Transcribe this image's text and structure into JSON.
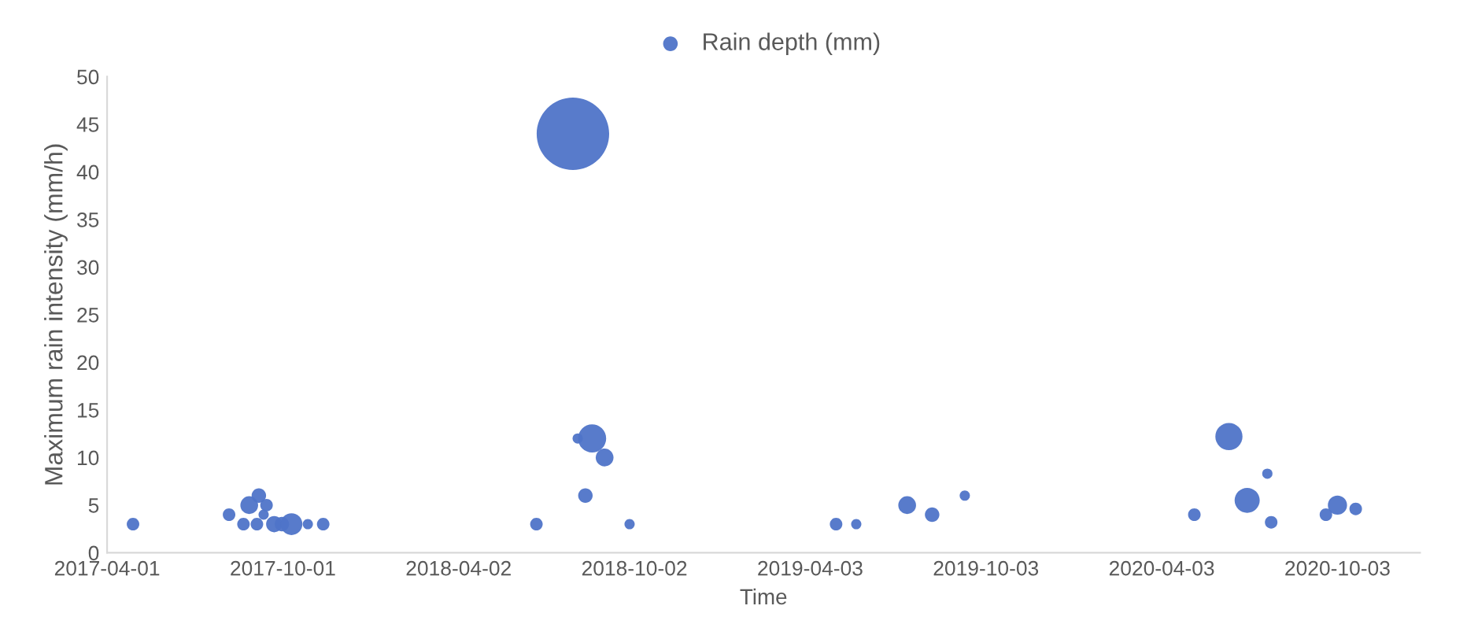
{
  "chart_data": {
    "type": "bubble",
    "xlabel": "Time",
    "ylabel": "Maximum rain intensity (mm/h)",
    "xlim": [
      "2017-04-01",
      "2020-12-28"
    ],
    "xticks": [
      "2017-04-01",
      "2017-10-01",
      "2018-04-02",
      "2018-10-02",
      "2019-04-03",
      "2019-10-03",
      "2020-04-03",
      "2020-10-03"
    ],
    "ylim": [
      0,
      50
    ],
    "yticks": [
      0,
      5,
      10,
      15,
      20,
      25,
      30,
      35,
      40,
      45,
      50
    ],
    "grid": false,
    "legend": "top",
    "series": [
      {
        "name": "Rain depth (mm)",
        "color": "#4f74c8",
        "x": [
          "2017-04-28",
          "2017-08-06",
          "2017-08-21",
          "2017-08-27",
          "2017-09-04",
          "2017-09-06",
          "2017-09-11",
          "2017-09-14",
          "2017-09-22",
          "2017-09-30",
          "2017-10-10",
          "2017-10-27",
          "2017-11-12",
          "2018-06-22",
          "2018-07-30",
          "2018-08-04",
          "2018-08-19",
          "2018-09-01",
          "2018-08-12",
          "2018-09-27",
          "2019-04-30",
          "2019-05-21",
          "2019-07-13",
          "2019-08-08",
          "2019-09-11",
          "2020-05-07",
          "2020-06-12",
          "2020-07-01",
          "2020-07-22",
          "2020-07-26",
          "2020-09-21",
          "2020-10-03",
          "2020-10-22"
        ],
        "values": [
          3,
          4,
          3,
          5,
          3,
          6,
          4,
          5,
          3,
          3,
          3,
          3,
          3,
          3,
          44,
          12,
          12,
          10,
          6,
          3,
          3,
          3,
          5,
          4,
          6,
          4,
          12.2,
          5.5,
          8.3,
          3.2,
          4,
          5,
          4.6
        ],
        "sizes": [
          0.03,
          0.03,
          0.03,
          0.06,
          0.03,
          0.04,
          0.02,
          0.03,
          0.05,
          0.04,
          0.09,
          0.02,
          0.03,
          0.03,
          1,
          0.02,
          0.15,
          0.06,
          0.04,
          0.02,
          0.03,
          0.02,
          0.06,
          0.04,
          0.02,
          0.03,
          0.14,
          0.12,
          0.02,
          0.03,
          0.03,
          0.07,
          0.03
        ]
      }
    ]
  }
}
